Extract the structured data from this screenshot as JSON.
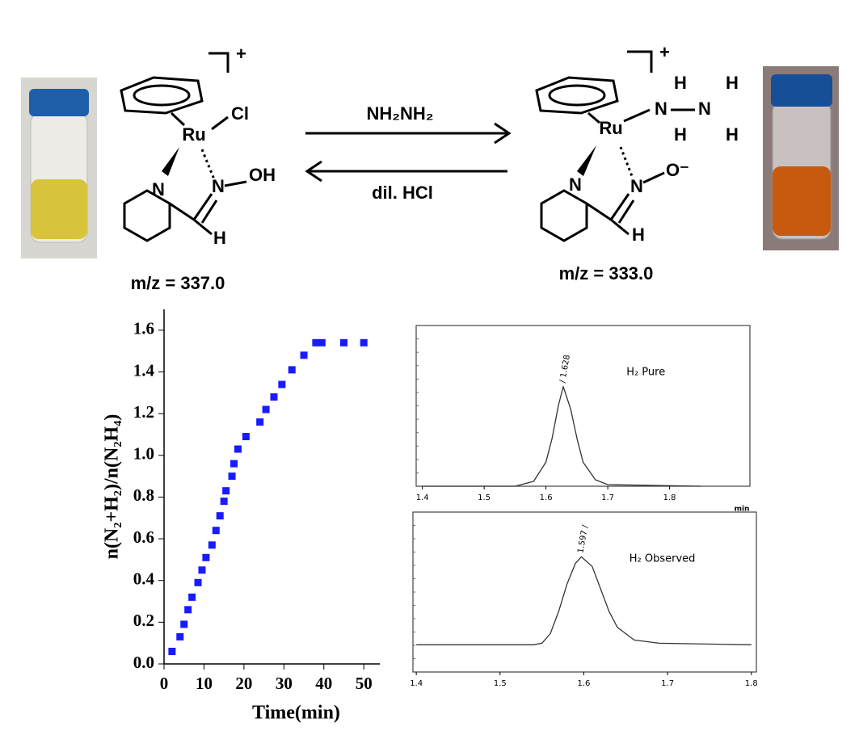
{
  "scheme": {
    "left": {
      "charge": "+",
      "metal": "Ru",
      "ligand_cl": "Cl",
      "n_py": "N",
      "n_ox": "N",
      "oh": "OH",
      "h": "H",
      "mz": "m/z = 337.0"
    },
    "right": {
      "charge": "+",
      "metal": "Ru",
      "n_py": "N",
      "n_ox": "N",
      "o": "O⁻",
      "h": "H",
      "hyd_n1": "N",
      "hyd_n2": "N",
      "hyd_h1": "H",
      "hyd_h2": "H",
      "hyd_h3": "H",
      "hyd_h4": "H",
      "mz": "m/z = 333.0"
    },
    "forward_reagent": "NH₂NH₂",
    "reverse_reagent": "dil. HCl"
  },
  "chart_data": [
    {
      "type": "scatter",
      "xlabel": "Time(min)",
      "ylabel": "n(N₂+H₂)/n(N₂H₄)",
      "color": "#1a1aff",
      "x": [
        2,
        4,
        5,
        6,
        7,
        8.5,
        9.5,
        10.5,
        12,
        13,
        14,
        15,
        15.5,
        17,
        17.5,
        18.5,
        20.5,
        24,
        25.5,
        27.5,
        29.5,
        32,
        35,
        38,
        39.5,
        45,
        50
      ],
      "values": [
        0.06,
        0.13,
        0.19,
        0.26,
        0.32,
        0.39,
        0.45,
        0.51,
        0.57,
        0.64,
        0.71,
        0.78,
        0.83,
        0.9,
        0.96,
        1.03,
        1.09,
        1.16,
        1.22,
        1.28,
        1.34,
        1.41,
        1.48,
        1.54,
        1.54,
        1.54,
        1.54
      ],
      "xlim": [
        0,
        54
      ],
      "ylim": [
        0,
        1.7
      ],
      "xticks": [
        0,
        10,
        20,
        30,
        40,
        50
      ],
      "yticks": [
        {
          "value": 0,
          "label": "0.0"
        },
        0.2,
        0.4,
        0.6,
        0.8,
        {
          "value": 1,
          "label": "1.0"
        },
        1.2,
        1.4,
        1.6
      ]
    },
    {
      "type": "line",
      "xlabel": "min",
      "annotations": [
        "/ 1.628",
        "H₂ Pure"
      ],
      "color": "#333333",
      "x": [
        1.4,
        1.55,
        1.58,
        1.6,
        1.61,
        1.62,
        1.628,
        1.64,
        1.65,
        1.66,
        1.68,
        1.7,
        1.85
      ],
      "values": [
        0,
        0,
        3,
        15,
        30,
        50,
        62,
        48,
        30,
        15,
        4,
        1,
        0
      ],
      "xlim": [
        1.39,
        1.93
      ],
      "ylim": [
        0,
        100
      ],
      "xticks": [
        1.4,
        1.5,
        1.6,
        1.7,
        1.8
      ]
    },
    {
      "type": "line",
      "annotations": [
        "1.597 /",
        "H₂ Observed"
      ],
      "color": "#333333",
      "x": [
        1.4,
        1.54,
        1.55,
        1.56,
        1.57,
        1.58,
        1.59,
        1.597,
        1.61,
        1.62,
        1.63,
        1.64,
        1.66,
        1.69,
        1.8
      ],
      "values": [
        17,
        17,
        18,
        24,
        38,
        55,
        68,
        72,
        66,
        52,
        38,
        28,
        20,
        18,
        17
      ],
      "xlim": [
        1.396,
        1.806
      ],
      "ylim": [
        0,
        100
      ],
      "xticks": [
        1.4,
        1.5,
        1.6,
        1.7,
        1.8
      ]
    }
  ]
}
